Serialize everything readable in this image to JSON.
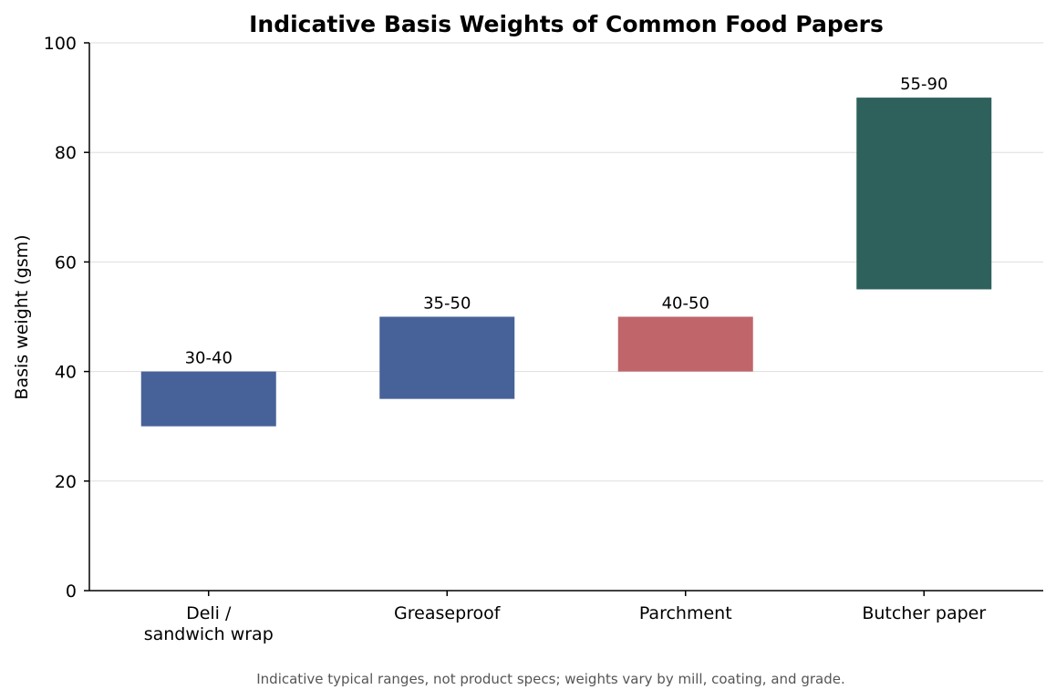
{
  "chart_data": {
    "type": "bar",
    "title": "Indicative Basis Weights of Common Food Papers",
    "xlabel": "",
    "ylabel": "Basis weight (gsm)",
    "ylim": [
      0,
      100
    ],
    "yticks": [
      0,
      20,
      40,
      60,
      80,
      100
    ],
    "grid": "y",
    "bars": [
      {
        "category": [
          "Deli /",
          "sandwich wrap"
        ],
        "low": 30,
        "high": 40,
        "label": "30-40",
        "color": "#476298"
      },
      {
        "category": [
          "Greaseproof"
        ],
        "low": 35,
        "high": 50,
        "label": "35-50",
        "color": "#476298"
      },
      {
        "category": [
          "Parchment"
        ],
        "low": 40,
        "high": 50,
        "label": "40-50",
        "color": "#c0666b"
      },
      {
        "category": [
          "Butcher paper"
        ],
        "low": 55,
        "high": 90,
        "label": "55-90",
        "color": "#2e605c"
      }
    ],
    "footnote": "Indicative typical ranges, not product specs; weights vary by mill, coating, and grade."
  }
}
